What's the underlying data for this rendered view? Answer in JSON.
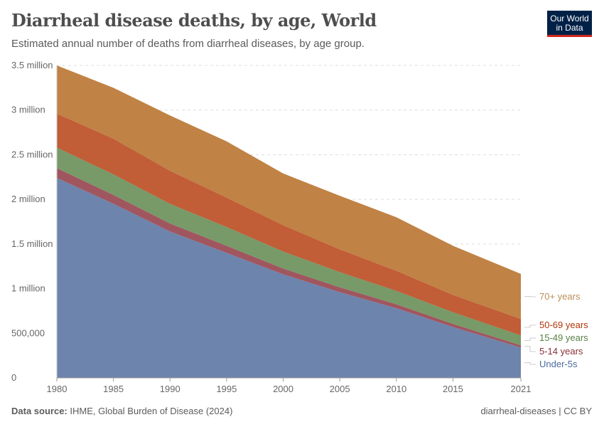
{
  "header": {
    "title": "Diarrheal disease deaths, by age, World",
    "subtitle": "Estimated annual number of deaths from diarrheal diseases, by age group.",
    "logo_text": "Our World in Data"
  },
  "footer": {
    "source_label": "Data source:",
    "source": "IHME, Global Burden of Disease (2024)",
    "right": "diarrheal-diseases | CC BY"
  },
  "chart_data": {
    "type": "area",
    "stacked": true,
    "title": "Diarrheal disease deaths, by age, World",
    "x": [
      1980,
      1985,
      1990,
      1995,
      2000,
      2005,
      2010,
      2015,
      2021
    ],
    "xticks": [
      "1980",
      "1985",
      "1990",
      "1995",
      "2000",
      "2005",
      "2010",
      "2015",
      "2021"
    ],
    "yticks": [
      "0",
      "500,000",
      "1 million",
      "1.5 million",
      "2 million",
      "2.5 million",
      "3 million",
      "3.5 million"
    ],
    "ylim": [
      0,
      3500000
    ],
    "grid": "horizontal dashed",
    "legend": "right, inline labels",
    "series": [
      {
        "name": "Under-5s",
        "color": "#6d84ad",
        "label_color": "#4c6a9c",
        "values": [
          2240000,
          1950000,
          1640000,
          1400000,
          1160000,
          960000,
          780000,
          570000,
          340000
        ]
      },
      {
        "name": "5-14 years",
        "color": "#a0565f",
        "label_color": "#883039",
        "values": [
          110000,
          100000,
          90000,
          80000,
          65000,
          55000,
          45000,
          35000,
          25000
        ]
      },
      {
        "name": "15-49 years",
        "color": "#779a68",
        "label_color": "#578145",
        "values": [
          230000,
          230000,
          220000,
          210000,
          190000,
          170000,
          150000,
          130000,
          110000
        ]
      },
      {
        "name": "50-69 years",
        "color": "#c15d37",
        "label_color": "#b13507",
        "values": [
          380000,
          400000,
          370000,
          330000,
          295000,
          255000,
          225000,
          195000,
          185000
        ]
      },
      {
        "name": "70+ years",
        "color": "#c08245",
        "label_color": "#bc8e5a",
        "values": [
          540000,
          570000,
          620000,
          630000,
          580000,
          600000,
          600000,
          550000,
          505000
        ]
      }
    ]
  }
}
